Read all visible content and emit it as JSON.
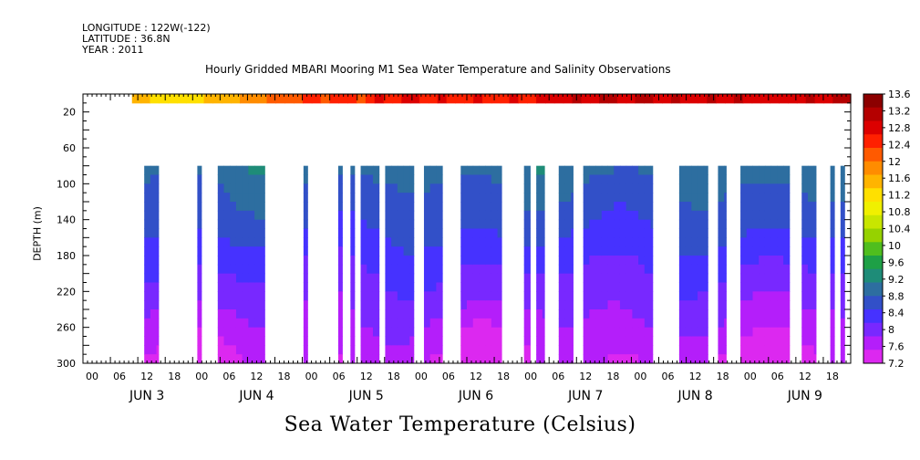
{
  "header": {
    "longitude": "LONGITUDE : 122W(-122)",
    "latitude": "LATITUDE : 36.8N",
    "year": "YEAR : 2011"
  },
  "chart_data": {
    "type": "heatmap",
    "title": "Hourly Gridded MBARI Mooring M1 Sea Water Temperature and Salinity Observations",
    "subtitle": "Sea Water Temperature (Celsius)",
    "ylabel": "DEPTH (m)",
    "ylim": [
      300,
      0
    ],
    "y_ticks": [
      20,
      60,
      100,
      140,
      180,
      220,
      260,
      300
    ],
    "x_start": "2011-06-03 00:00",
    "x_end": "2011-06-10 00:00",
    "x_hour_ticks": [
      "00",
      "06",
      "12",
      "18",
      "00",
      "06",
      "12",
      "18",
      "00",
      "06",
      "12",
      "18",
      "00",
      "06",
      "12",
      "18",
      "00",
      "06",
      "12",
      "18",
      "00",
      "06",
      "12",
      "18",
      "00",
      "06",
      "12",
      "18"
    ],
    "x_day_labels": [
      "JUN   3",
      "JUN   4",
      "JUN   5",
      "JUN   6",
      "JUN   7",
      "JUN   8",
      "JUN   9"
    ],
    "colorbar_levels": [
      "13.6",
      "13.2",
      "12.8",
      "12.4",
      "12",
      "11.6",
      "11.2",
      "10.8",
      "10.4",
      "10",
      "9.6",
      "9.2",
      "8.8",
      "8.4",
      "8",
      "7.6",
      "7.2"
    ],
    "colorbar_colors": [
      "#8c0000",
      "#b40000",
      "#dc0000",
      "#ff2000",
      "#ff5a00",
      "#ff8c00",
      "#ffb400",
      "#ffe000",
      "#f0f000",
      "#c8e600",
      "#96d200",
      "#50be1e",
      "#1ea046",
      "#1e8c78",
      "#2d6ea0",
      "#3250c8",
      "#4632ff",
      "#7828ff",
      "#b41efa",
      "#dc28f0"
    ],
    "vmin": 7.2,
    "vmax": 13.6,
    "surface_layer": {
      "depth_range": [
        0,
        10
      ],
      "time_range_hours": [
        24,
        240
      ],
      "profile_hours": [
        24,
        36,
        48,
        60,
        72,
        84,
        96,
        108,
        120,
        132,
        144,
        156,
        168,
        180,
        192,
        204,
        216,
        228,
        240
      ],
      "temps": [
        11.4,
        11.2,
        11.4,
        12.0,
        12.3,
        12.4,
        12.5,
        12.6,
        12.6,
        12.5,
        12.7,
        12.9,
        13.0,
        12.9,
        12.8,
        12.9,
        12.8,
        12.9,
        12.9
      ]
    },
    "data_depth_range": [
      80,
      300
    ],
    "data_segments_hours": [
      [
        30,
        37
      ],
      [
        56,
        58
      ],
      [
        66,
        89
      ],
      [
        108,
        110
      ],
      [
        125,
        127
      ],
      [
        131,
        133
      ],
      [
        136,
        145
      ],
      [
        148,
        162
      ],
      [
        167,
        176
      ],
      [
        185,
        205
      ],
      [
        216,
        219
      ],
      [
        222,
        226
      ],
      [
        233,
        240
      ],
      [
        245,
        279
      ],
      [
        292,
        306
      ],
      [
        311,
        315
      ],
      [
        322,
        346
      ],
      [
        352,
        359
      ],
      [
        366,
        368
      ],
      [
        371,
        373
      ]
    ],
    "profile_depths": [
      80,
      100,
      140,
      180,
      220,
      260,
      300
    ],
    "profile_temps": [
      9.0,
      8.8,
      8.6,
      8.3,
      8.0,
      7.8,
      7.5
    ],
    "surface_temp_range": [
      11.2,
      13.3
    ]
  }
}
